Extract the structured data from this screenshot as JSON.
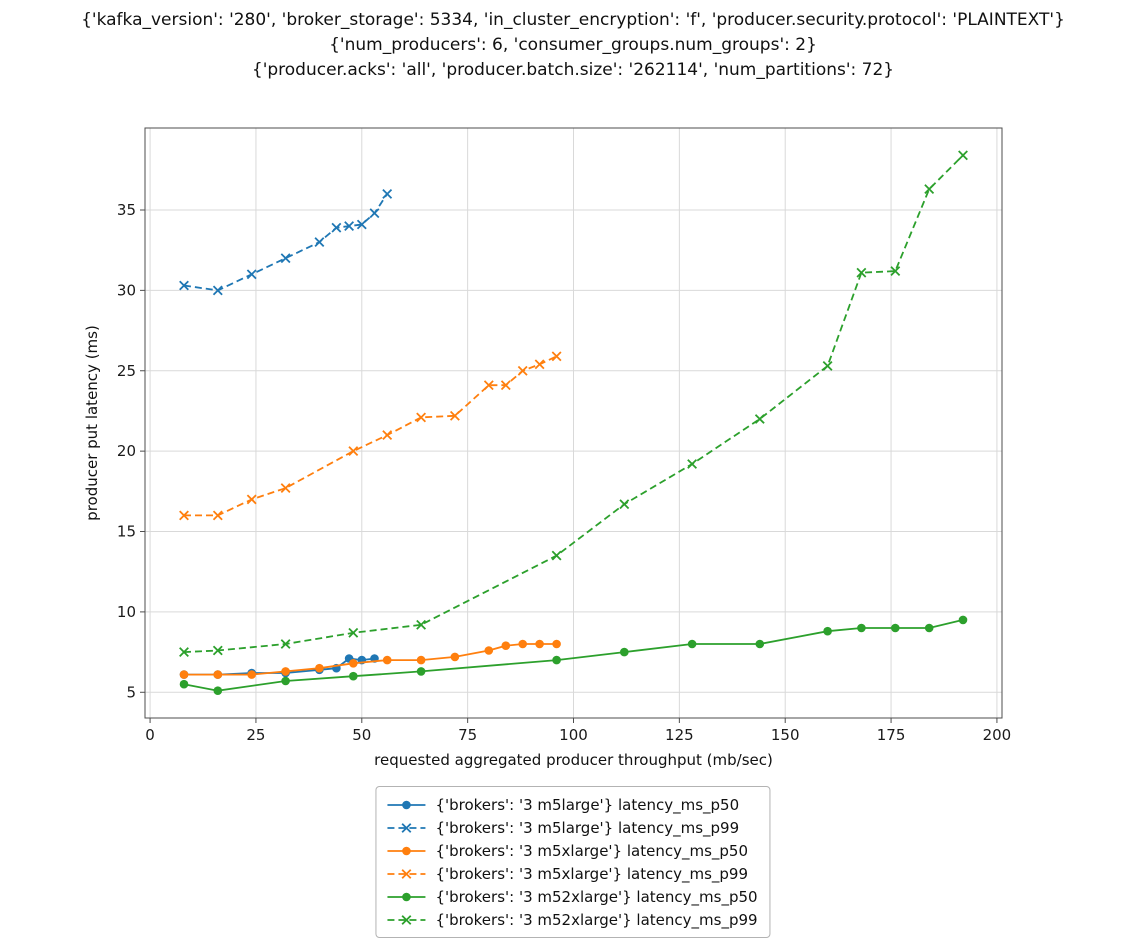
{
  "colors": {
    "blue": "#1f77b4",
    "orange": "#ff7f0e",
    "green": "#2ca02c",
    "grid": "#d9d9d9",
    "spine": "#4d4d4d",
    "text": "#1a1a1a"
  },
  "chart_data": {
    "type": "line",
    "title_lines": [
      "{'kafka_version': '280', 'broker_storage': 5334, 'in_cluster_encryption': 'f', 'producer.security.protocol': 'PLAINTEXT'}",
      "{'num_producers': 6, 'consumer_groups.num_groups': 2}",
      "{'producer.acks': 'all', 'producer.batch.size': '262114', 'num_partitions': 72}"
    ],
    "xlabel": "requested aggregated producer throughput (mb/sec)",
    "ylabel": "producer put latency (ms)",
    "xlim": [
      -1.2,
      201.2
    ],
    "ylim": [
      3.4,
      40.1
    ],
    "xticks": [
      0,
      25,
      50,
      75,
      100,
      125,
      150,
      175,
      200
    ],
    "yticks": [
      5,
      10,
      15,
      20,
      25,
      30,
      35
    ],
    "grid": true,
    "legend_position": "bottom-center",
    "series": [
      {
        "name": "{'brokers': '3 m5large'} latency_ms_p50",
        "color": "#1f77b4",
        "line": "solid",
        "marker": "circle",
        "x": [
          8,
          16,
          24,
          32,
          40,
          44,
          47,
          50,
          53
        ],
        "y": [
          6.1,
          6.1,
          6.2,
          6.2,
          6.4,
          6.5,
          7.1,
          7.0,
          7.1
        ]
      },
      {
        "name": "{'brokers': '3 m5large'} latency_ms_p99",
        "color": "#1f77b4",
        "line": "dashed",
        "marker": "x",
        "x": [
          8,
          16,
          24,
          32,
          40,
          44,
          47,
          50,
          53,
          56
        ],
        "y": [
          30.3,
          30.0,
          31.0,
          32.0,
          33.0,
          33.9,
          34.0,
          34.1,
          34.8,
          36.0
        ]
      },
      {
        "name": "{'brokers': '3 m5xlarge'} latency_ms_p50",
        "color": "#ff7f0e",
        "line": "solid",
        "marker": "circle",
        "x": [
          8,
          16,
          24,
          32,
          40,
          48,
          56,
          64,
          72,
          80,
          84,
          88,
          92,
          96
        ],
        "y": [
          6.1,
          6.1,
          6.1,
          6.3,
          6.5,
          6.8,
          7.0,
          7.0,
          7.2,
          7.6,
          7.9,
          8.0,
          8.0,
          8.0
        ]
      },
      {
        "name": "{'brokers': '3 m5xlarge'} latency_ms_p99",
        "color": "#ff7f0e",
        "line": "dashed",
        "marker": "x",
        "x": [
          8,
          16,
          24,
          32,
          48,
          56,
          64,
          72,
          80,
          84,
          88,
          92,
          96
        ],
        "y": [
          16.0,
          16.0,
          17.0,
          17.7,
          20.0,
          21.0,
          22.1,
          22.2,
          24.1,
          24.1,
          25.0,
          25.4,
          25.9
        ]
      },
      {
        "name": "{'brokers': '3 m52xlarge'} latency_ms_p50",
        "color": "#2ca02c",
        "line": "solid",
        "marker": "circle",
        "x": [
          8,
          16,
          32,
          48,
          64,
          96,
          112,
          128,
          144,
          160,
          168,
          176,
          184,
          192
        ],
        "y": [
          5.5,
          5.1,
          5.7,
          6.0,
          6.3,
          7.0,
          7.5,
          8.0,
          8.0,
          8.8,
          9.0,
          9.0,
          9.0,
          9.5
        ]
      },
      {
        "name": "{'brokers': '3 m52xlarge'} latency_ms_p99",
        "color": "#2ca02c",
        "line": "dashed",
        "marker": "x",
        "x": [
          8,
          16,
          32,
          48,
          64,
          96,
          112,
          128,
          144,
          160,
          168,
          176,
          184,
          192
        ],
        "y": [
          7.5,
          7.6,
          8.0,
          8.7,
          9.2,
          13.5,
          16.7,
          19.2,
          22.0,
          25.3,
          31.1,
          31.2,
          36.3,
          38.4
        ]
      }
    ]
  }
}
